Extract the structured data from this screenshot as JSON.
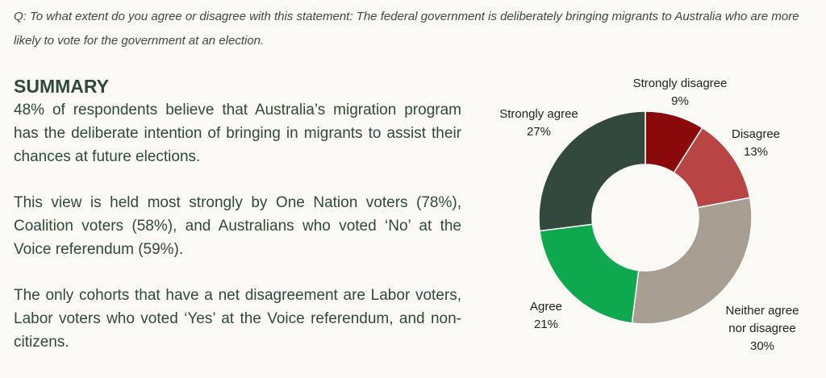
{
  "question": "Q: To what extent do you agree or disagree with this statement: The federal government is deliberately bringing migrants to Australia who are more likely to vote for the government at an election.",
  "summary": {
    "heading": "SUMMARY",
    "paragraphs": [
      "48% of respondents believe that Australia’s migration program has the deliberate intention of bringing in migrants to assist their chances at future elections.",
      "This view is held most strongly by One Nation voters (78%), Coalition voters (58%), and Australians who voted ‘No’ at the Voice referendum (59%).",
      "The only cohorts that have a net disagreement are Labor voters, Labor voters who voted ‘Yes’ at the Voice referendum, and non-citizens."
    ]
  },
  "chart_data": {
    "type": "donut",
    "categories": [
      "Strongly disagree",
      "Disagree",
      "Neither agree nor disagree",
      "Agree",
      "Strongly agree"
    ],
    "values": [
      9,
      13,
      30,
      21,
      27
    ],
    "value_labels": [
      "9%",
      "13%",
      "30%",
      "21%",
      "27%"
    ],
    "colors": [
      "#8a0a0c",
      "#b94444",
      "#a79e91",
      "#0ea84e",
      "#33493d"
    ]
  }
}
